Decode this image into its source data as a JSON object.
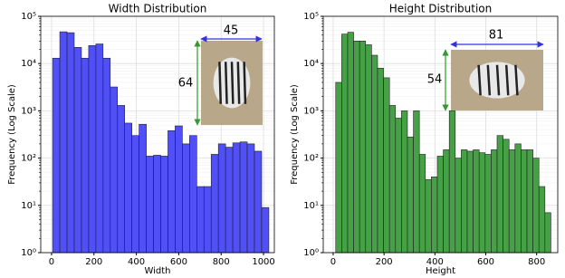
{
  "chart_data": [
    {
      "type": "histogram",
      "title": "Width Distribution",
      "xlabel": "Width",
      "ylabel": "Frequency (Log Scale)",
      "bins": [
        5,
        39,
        73,
        107,
        141,
        175,
        209,
        243,
        277,
        311,
        345,
        379,
        413,
        447,
        481,
        515,
        549,
        583,
        617,
        651,
        685,
        719,
        753,
        787,
        821,
        855,
        889,
        923,
        957,
        991,
        1025
      ],
      "values": [
        13000,
        47000,
        45000,
        22000,
        13000,
        24000,
        26000,
        13000,
        3200,
        1300,
        550,
        300,
        520,
        110,
        115,
        110,
        380,
        480,
        200,
        300,
        25,
        25,
        120,
        200,
        170,
        210,
        220,
        200,
        140,
        9
      ],
      "color": "#4747f5",
      "xlim": [
        -51,
        1051
      ],
      "xticks": [
        0,
        200,
        400,
        600,
        800,
        1000
      ],
      "ylim": [
        1,
        100000
      ],
      "log_scale": true,
      "grid": true,
      "yticks": [
        {
          "value": 1,
          "label": "10⁰"
        },
        {
          "value": 10,
          "label": "10¹"
        },
        {
          "value": 100,
          "label": "10²"
        },
        {
          "value": 1000,
          "label": "10³"
        },
        {
          "value": 10000,
          "label": "10⁴"
        },
        {
          "value": 100000,
          "label": "10⁵"
        }
      ],
      "annotations": [
        "45",
        "64"
      ]
    },
    {
      "type": "histogram",
      "title": "Height Distribution",
      "xlabel": "Height",
      "ylabel": "Frequency (Log Scale)",
      "bins": [
        10,
        33.5,
        57,
        80.5,
        104,
        127.5,
        151,
        174.5,
        198,
        221.5,
        245,
        268.5,
        292,
        315.5,
        339,
        362.5,
        386,
        409.5,
        433,
        456.5,
        480,
        503.5,
        527,
        550.5,
        574,
        597.5,
        621,
        644.5,
        668,
        691.5,
        715,
        738.5,
        762,
        785.5,
        809,
        832.5,
        856
      ],
      "values": [
        4000,
        42000,
        46000,
        30000,
        30000,
        25000,
        15000,
        8000,
        5000,
        1300,
        700,
        1000,
        280,
        1000,
        120,
        35,
        40,
        110,
        150,
        1000,
        100,
        150,
        140,
        150,
        130,
        120,
        150,
        300,
        250,
        150,
        200,
        150,
        150,
        100,
        25,
        7
      ],
      "color": "#3c9c3c",
      "xlim": [
        -39,
        883
      ],
      "xticks": [
        0,
        200,
        400,
        600,
        800
      ],
      "ylim": [
        1,
        100000
      ],
      "log_scale": true,
      "grid": true,
      "yticks": [
        {
          "value": 1,
          "label": "10⁰"
        },
        {
          "value": 10,
          "label": "10¹"
        },
        {
          "value": 100,
          "label": "10²"
        },
        {
          "value": 1000,
          "label": "10³"
        },
        {
          "value": 10000,
          "label": "10⁴"
        },
        {
          "value": 100000,
          "label": "10⁵"
        }
      ],
      "annotations": [
        "81",
        "54"
      ]
    }
  ]
}
